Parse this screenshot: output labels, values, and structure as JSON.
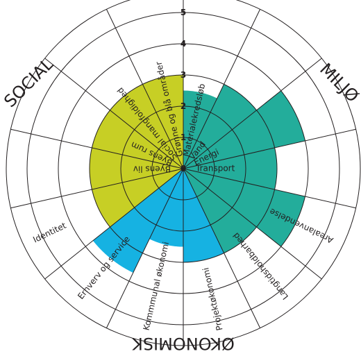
{
  "chart_data": {
    "type": "radial-bar",
    "rmax": 5,
    "ticks": [
      "0",
      "1",
      "2",
      "3",
      "4",
      "5"
    ],
    "groups": [
      {
        "name": "MILJØ",
        "color": "#23ad9b"
      },
      {
        "name": "ØKONOMISK",
        "color": "#16b2e2"
      },
      {
        "name": "SOCIAL",
        "color": "#c7cf25"
      }
    ],
    "segments": [
      {
        "label": "Materialekredsløb",
        "group": 0,
        "value": 2.5
      },
      {
        "label": "Vand",
        "group": 0,
        "value": 3.0
      },
      {
        "label": "Energi",
        "group": 0,
        "value": 4.0
      },
      {
        "label": "Transport",
        "group": 0,
        "value": 3.0
      },
      {
        "label": "Arealanvendelse",
        "group": 0,
        "value": 4.0
      },
      {
        "label": "Langtidsholdbarhed",
        "group": 0,
        "value": 3.0
      },
      {
        "label": "Projektøkonomi",
        "group": 1,
        "value": 3.0
      },
      {
        "label": "Kommmunal økonomi",
        "group": 1,
        "value": 2.5
      },
      {
        "label": "Erhverv og service",
        "group": 1,
        "value": 3.7
      },
      {
        "label": "Identitet",
        "group": 2,
        "value": 3.0
      },
      {
        "label": "Byens liv",
        "group": 2,
        "value": 3.0
      },
      {
        "label": "Byens rum",
        "group": 2,
        "value": 3.0
      },
      {
        "label": "Social mangfoldighed",
        "group": 2,
        "value": 3.0
      },
      {
        "label": "Grønne og blå områder",
        "group": 2,
        "value": 3.0
      }
    ]
  }
}
